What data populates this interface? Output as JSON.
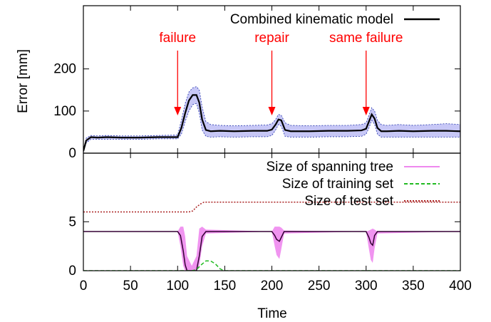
{
  "chart_data": [
    {
      "type": "line",
      "ylabel": "Error [mm]",
      "xlim": [
        0,
        400
      ],
      "ylim": [
        0,
        350
      ],
      "yticks": [
        0,
        100,
        200
      ],
      "legend_position": "top-right",
      "series": [
        {
          "name": "Combined kinematic model",
          "color": "#000000",
          "band_color": "#9999ee",
          "x": [
            0,
            3,
            8,
            15,
            25,
            40,
            60,
            80,
            100,
            104,
            108,
            112,
            116,
            120,
            123,
            126,
            130,
            135,
            145,
            160,
            180,
            195,
            200,
            204,
            207,
            210,
            214,
            220,
            240,
            260,
            280,
            295,
            300,
            303,
            306,
            309,
            312,
            316,
            322,
            335,
            350,
            370,
            385,
            400
          ],
          "values": [
            5,
            30,
            38,
            37,
            38,
            37,
            37,
            38,
            38,
            60,
            95,
            125,
            138,
            138,
            120,
            80,
            55,
            52,
            53,
            52,
            53,
            53,
            56,
            68,
            80,
            78,
            55,
            52,
            52,
            53,
            53,
            54,
            58,
            75,
            92,
            82,
            60,
            52,
            52,
            53,
            52,
            53,
            53,
            52
          ],
          "band_upper": [
            8,
            36,
            42,
            41,
            42,
            41,
            41,
            42,
            43,
            78,
            118,
            145,
            155,
            158,
            150,
            110,
            75,
            68,
            66,
            65,
            66,
            67,
            70,
            80,
            92,
            90,
            72,
            66,
            65,
            66,
            66,
            68,
            72,
            90,
            108,
            100,
            78,
            68,
            66,
            68,
            66,
            68,
            70,
            68
          ],
          "band_lower": [
            2,
            24,
            33,
            33,
            33,
            33,
            33,
            34,
            34,
            45,
            75,
            100,
            115,
            118,
            95,
            55,
            40,
            38,
            39,
            38,
            39,
            39,
            42,
            55,
            68,
            64,
            40,
            38,
            38,
            39,
            39,
            40,
            45,
            60,
            78,
            68,
            45,
            38,
            38,
            38,
            38,
            38,
            38,
            38
          ]
        }
      ],
      "annotations": [
        {
          "text": "failure",
          "x": 100,
          "color": "#ff0000"
        },
        {
          "text": "repair",
          "x": 200,
          "color": "#ff0000"
        },
        {
          "text": "same failure",
          "x": 300,
          "color": "#ff0000"
        }
      ]
    },
    {
      "type": "line",
      "xlabel": "Time",
      "xlim": [
        0,
        400
      ],
      "ylim": [
        0,
        12
      ],
      "xticks": [
        0,
        50,
        100,
        150,
        200,
        250,
        300,
        350,
        400
      ],
      "yticks": [
        0,
        5
      ],
      "legend_position": "top-right",
      "series": [
        {
          "name": "Size of spanning tree",
          "color": "#ee88ee",
          "mean_color": "#330033",
          "x": [
            0,
            100,
            103,
            106,
            108,
            110,
            115,
            120,
            123,
            126,
            130,
            200,
            203,
            205,
            208,
            210,
            213,
            300,
            303,
            305,
            307,
            309,
            312,
            400
          ],
          "values": [
            4,
            4,
            3.6,
            2,
            0.6,
            0,
            0,
            0,
            1.5,
            3.5,
            4,
            4,
            3.6,
            3.2,
            3.0,
            3.4,
            4,
            4,
            3.4,
            2.8,
            2.6,
            3.6,
            4,
            4
          ],
          "band_upper": [
            4,
            4,
            4.5,
            4.5,
            3.5,
            1.5,
            0.5,
            1.5,
            4.3,
            4.5,
            4.2,
            4,
            4.5,
            4.5,
            4.5,
            4.4,
            4.1,
            4,
            4.1,
            4.2,
            4.3,
            4.2,
            4,
            4
          ],
          "band_lower": [
            4,
            4,
            2.5,
            0.5,
            0,
            0,
            0,
            0,
            0.5,
            2.5,
            3.8,
            4,
            2.5,
            1.6,
            1.2,
            2.2,
            3.8,
            4,
            2.2,
            1.1,
            0.8,
            2.3,
            3.8,
            4
          ]
        },
        {
          "name": "Size of training set",
          "color": "#22bb22",
          "x": [
            0,
            115,
            120,
            125,
            130,
            135,
            140,
            145,
            148,
            150,
            400
          ],
          "values": [
            0,
            0,
            0.1,
            0.6,
            1.0,
            1.0,
            0.7,
            0.2,
            0.05,
            0,
            0
          ]
        },
        {
          "name": "Size of test set",
          "color": "#aa2222",
          "x": [
            0,
            112,
            116,
            120,
            124,
            128,
            132,
            400
          ],
          "values": [
            6,
            6,
            6.1,
            6.5,
            6.8,
            7,
            7,
            7
          ]
        }
      ]
    }
  ]
}
